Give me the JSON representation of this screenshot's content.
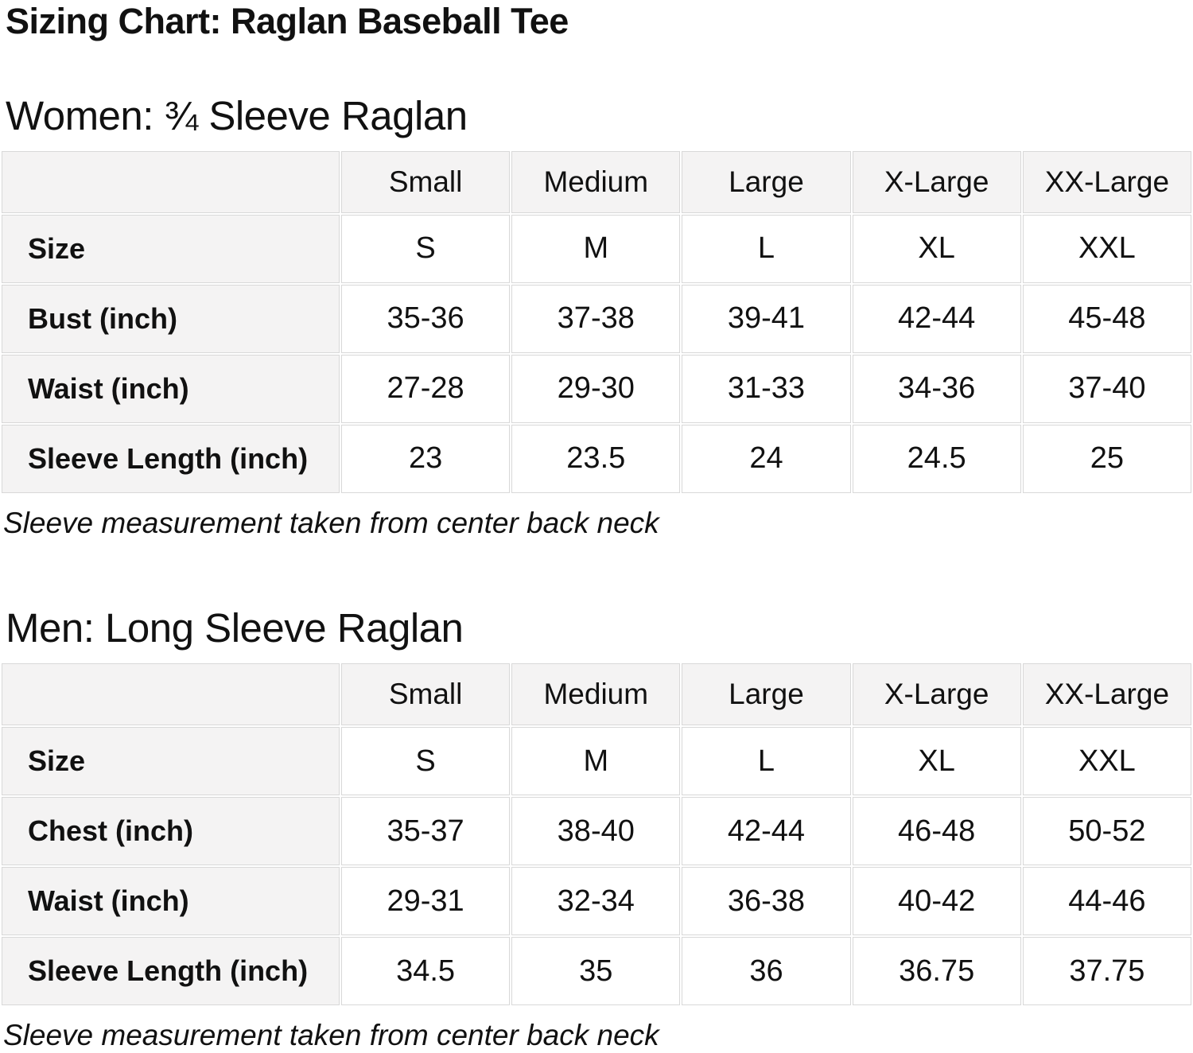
{
  "page": {
    "title": "Sizing Chart: Raglan Baseball Tee"
  },
  "colors": {
    "header_cell_bg": "#f4f3f3",
    "data_cell_bg": "#ffffff",
    "cell_border": "#d8d8d8",
    "text": "#111111"
  },
  "tables": [
    {
      "heading": "Women: ¾ Sleeve Raglan",
      "size_headers": [
        "Small",
        "Medium",
        "Large",
        "X-Large",
        "XX-Large"
      ],
      "rows": [
        {
          "label": "Size",
          "values": [
            "S",
            "M",
            "L",
            "XL",
            "XXL"
          ]
        },
        {
          "label": "Bust (inch)",
          "values": [
            "35-36",
            "37-38",
            "39-41",
            "42-44",
            "45-48"
          ]
        },
        {
          "label": "Waist (inch)",
          "values": [
            "27-28",
            "29-30",
            "31-33",
            "34-36",
            "37-40"
          ]
        },
        {
          "label": "Sleeve Length (inch)",
          "values": [
            "23",
            "23.5",
            "24",
            "24.5",
            "25"
          ]
        }
      ],
      "note": "Sleeve measurement taken from center back neck"
    },
    {
      "heading": "Men: Long Sleeve Raglan",
      "size_headers": [
        "Small",
        "Medium",
        "Large",
        "X-Large",
        "XX-Large"
      ],
      "rows": [
        {
          "label": "Size",
          "values": [
            "S",
            "M",
            "L",
            "XL",
            "XXL"
          ]
        },
        {
          "label": "Chest (inch)",
          "values": [
            "35-37",
            "38-40",
            "42-44",
            "46-48",
            "50-52"
          ]
        },
        {
          "label": "Waist (inch)",
          "values": [
            "29-31",
            "32-34",
            "36-38",
            "40-42",
            "44-46"
          ]
        },
        {
          "label": "Sleeve Length (inch)",
          "values": [
            "34.5",
            "35",
            "36",
            "36.75",
            "37.75"
          ]
        }
      ],
      "note": "Sleeve measurement taken from center back neck"
    }
  ]
}
